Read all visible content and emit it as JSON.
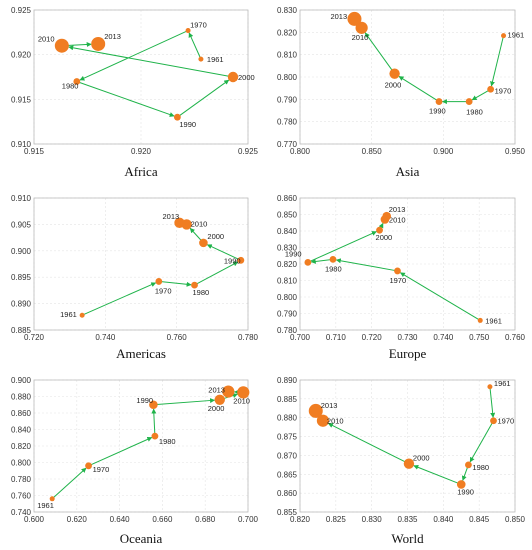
{
  "chart_data": [
    {
      "type": "scatter",
      "title": "Africa",
      "xlim": [
        0.915,
        0.925
      ],
      "xticks": [
        "0.915",
        "0.920",
        "0.925"
      ],
      "ylim": [
        0.91,
        0.925
      ],
      "yticks": [
        "0.910",
        "0.915",
        "0.920",
        "0.925"
      ],
      "points": [
        {
          "label": "1961",
          "x": 0.9228,
          "y": 0.9195,
          "size": 1
        },
        {
          "label": "1970",
          "x": 0.9222,
          "y": 0.9227,
          "size": 1
        },
        {
          "label": "1980",
          "x": 0.917,
          "y": 0.917,
          "size": 2
        },
        {
          "label": "1990",
          "x": 0.9217,
          "y": 0.913,
          "size": 2
        },
        {
          "label": "2000",
          "x": 0.9243,
          "y": 0.9175,
          "size": 4
        },
        {
          "label": "2010",
          "x": 0.9163,
          "y": 0.921,
          "size": 6
        },
        {
          "label": "2013",
          "x": 0.918,
          "y": 0.9212,
          "size": 6
        }
      ]
    },
    {
      "type": "scatter",
      "title": "Asia",
      "xlim": [
        0.8,
        0.95
      ],
      "xticks": [
        "0.800",
        "0.850",
        "0.900",
        "0.950"
      ],
      "ylim": [
        0.77,
        0.83
      ],
      "yticks": [
        "0.770",
        "0.780",
        "0.790",
        "0.800",
        "0.810",
        "0.820",
        "0.830"
      ],
      "points": [
        {
          "label": "1961",
          "x": 0.942,
          "y": 0.8185,
          "size": 1
        },
        {
          "label": "1970",
          "x": 0.933,
          "y": 0.7945,
          "size": 2
        },
        {
          "label": "1980",
          "x": 0.918,
          "y": 0.789,
          "size": 2
        },
        {
          "label": "1990",
          "x": 0.897,
          "y": 0.789,
          "size": 2
        },
        {
          "label": "2000",
          "x": 0.866,
          "y": 0.8015,
          "size": 4
        },
        {
          "label": "2010",
          "x": 0.843,
          "y": 0.822,
          "size": 5
        },
        {
          "label": "2013",
          "x": 0.838,
          "y": 0.826,
          "size": 6
        }
      ]
    },
    {
      "type": "scatter",
      "title": "Americas",
      "xlim": [
        0.72,
        0.78
      ],
      "xticks": [
        "0.720",
        "0.740",
        "0.760",
        "0.780"
      ],
      "ylim": [
        0.885,
        0.91
      ],
      "yticks": [
        "0.885",
        "0.890",
        "0.895",
        "0.900",
        "0.905",
        "0.910"
      ],
      "points": [
        {
          "label": "1961",
          "x": 0.7335,
          "y": 0.8878,
          "size": 1
        },
        {
          "label": "1970",
          "x": 0.755,
          "y": 0.8942,
          "size": 2
        },
        {
          "label": "1980",
          "x": 0.765,
          "y": 0.8935,
          "size": 2
        },
        {
          "label": "1990",
          "x": 0.778,
          "y": 0.8982,
          "size": 2
        },
        {
          "label": "2000",
          "x": 0.7675,
          "y": 0.9015,
          "size": 3
        },
        {
          "label": "2010",
          "x": 0.7628,
          "y": 0.905,
          "size": 4
        },
        {
          "label": "2013",
          "x": 0.7608,
          "y": 0.9053,
          "size": 4
        }
      ]
    },
    {
      "type": "scatter",
      "title": "Europe",
      "xlim": [
        0.7,
        0.76
      ],
      "xticks": [
        "0.700",
        "0.710",
        "0.720",
        "0.730",
        "0.740",
        "0.750",
        "0.760"
      ],
      "ylim": [
        0.78,
        0.86
      ],
      "yticks": [
        "0.780",
        "0.790",
        "0.800",
        "0.810",
        "0.820",
        "0.830",
        "0.840",
        "0.850",
        "0.860"
      ],
      "points": [
        {
          "label": "1961",
          "x": 0.7503,
          "y": 0.7858,
          "size": 1
        },
        {
          "label": "1970",
          "x": 0.7272,
          "y": 0.8158,
          "size": 2
        },
        {
          "label": "1980",
          "x": 0.7092,
          "y": 0.8228,
          "size": 2
        },
        {
          "label": "1990",
          "x": 0.7022,
          "y": 0.821,
          "size": 2
        },
        {
          "label": "2000",
          "x": 0.7222,
          "y": 0.8405,
          "size": 2
        },
        {
          "label": "2010",
          "x": 0.7237,
          "y": 0.847,
          "size": 3
        },
        {
          "label": "2013",
          "x": 0.7242,
          "y": 0.849,
          "size": 3
        }
      ]
    },
    {
      "type": "scatter",
      "title": "Oceania",
      "xlim": [
        0.6,
        0.7
      ],
      "xticks": [
        "0.600",
        "0.620",
        "0.640",
        "0.660",
        "0.680",
        "0.700"
      ],
      "ylim": [
        0.74,
        0.9
      ],
      "yticks": [
        "0.740",
        "0.760",
        "0.780",
        "0.800",
        "0.820",
        "0.840",
        "0.860",
        "0.880",
        "0.900"
      ],
      "points": [
        {
          "label": "1961",
          "x": 0.6085,
          "y": 0.756,
          "size": 1
        },
        {
          "label": "1970",
          "x": 0.6255,
          "y": 0.796,
          "size": 2
        },
        {
          "label": "1980",
          "x": 0.6565,
          "y": 0.832,
          "size": 2
        },
        {
          "label": "1990",
          "x": 0.6558,
          "y": 0.87,
          "size": 3
        },
        {
          "label": "2000",
          "x": 0.6868,
          "y": 0.876,
          "size": 4
        },
        {
          "label": "2010",
          "x": 0.6978,
          "y": 0.885,
          "size": 5
        },
        {
          "label": "2013",
          "x": 0.6908,
          "y": 0.886,
          "size": 5
        }
      ]
    },
    {
      "type": "scatter",
      "title": "World",
      "xlim": [
        0.82,
        0.85
      ],
      "xticks": [
        "0.820",
        "0.825",
        "0.830",
        "0.835",
        "0.840",
        "0.845",
        "0.850"
      ],
      "ylim": [
        0.855,
        0.89
      ],
      "yticks": [
        "0.855",
        "0.860",
        "0.865",
        "0.870",
        "0.875",
        "0.880",
        "0.885",
        "0.890"
      ],
      "points": [
        {
          "label": "1961",
          "x": 0.8465,
          "y": 0.8882,
          "size": 1
        },
        {
          "label": "1970",
          "x": 0.847,
          "y": 0.8792,
          "size": 2
        },
        {
          "label": "1980",
          "x": 0.8435,
          "y": 0.8675,
          "size": 2
        },
        {
          "label": "1990",
          "x": 0.8425,
          "y": 0.8623,
          "size": 3
        },
        {
          "label": "2000",
          "x": 0.8352,
          "y": 0.8678,
          "size": 4
        },
        {
          "label": "2010",
          "x": 0.8232,
          "y": 0.8792,
          "size": 5
        },
        {
          "label": "2013",
          "x": 0.8222,
          "y": 0.8818,
          "size": 6
        }
      ]
    }
  ],
  "colors": {
    "point": "#f07d22",
    "line": "#1fb34a",
    "grid": "#e4e4e4",
    "frame": "#bbbbbb"
  }
}
